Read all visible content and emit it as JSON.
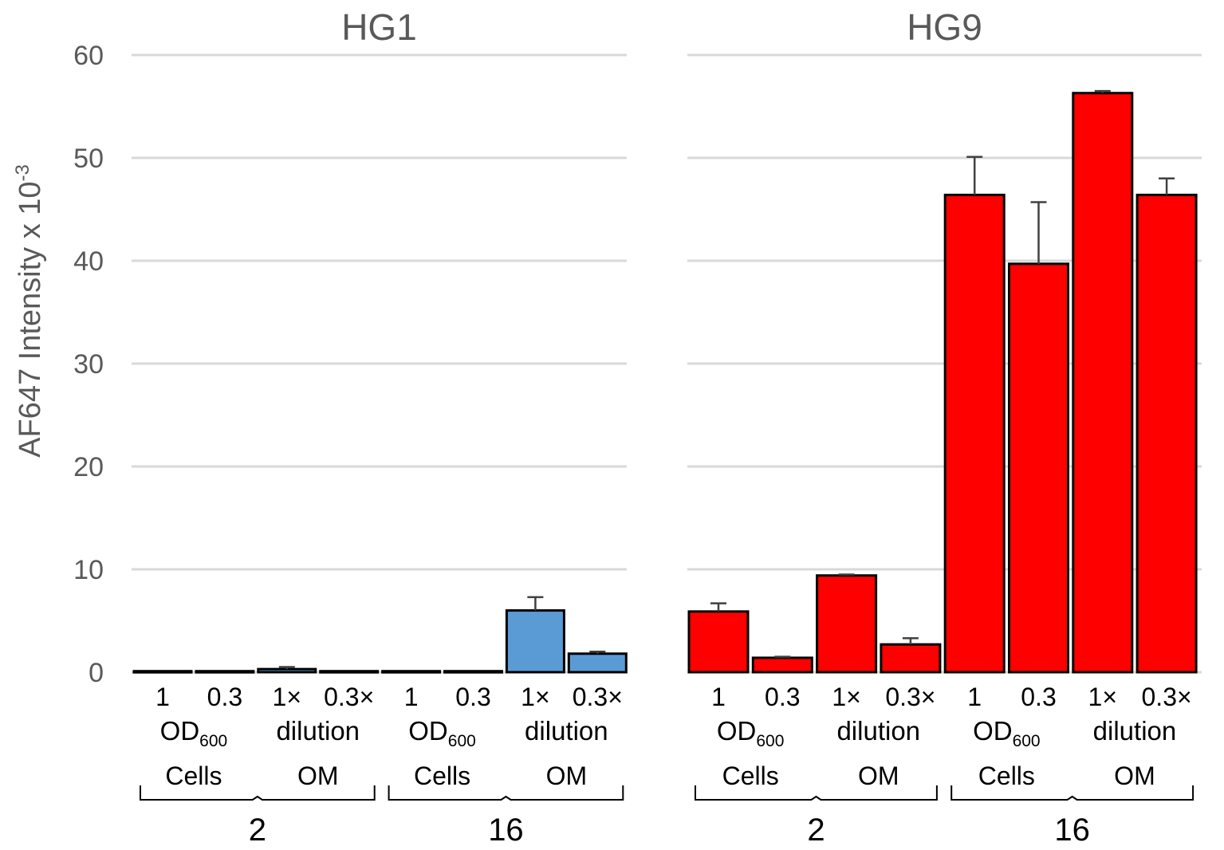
{
  "chart_data": {
    "type": "bar",
    "ylabel_main": "AF647 Intensity x 10",
    "ylabel_exp": "-3",
    "ylim": [
      0,
      60
    ],
    "yticks": [
      "0",
      "10",
      "20",
      "30",
      "40",
      "50",
      "60"
    ],
    "categories": [
      "1",
      "0.3",
      "1×",
      "0.3×",
      "1",
      "0.3",
      "1×",
      "0.3×"
    ],
    "group_labels": [
      "OD",
      "dilution",
      "OD",
      "dilution"
    ],
    "group_subscripts": [
      "600",
      "",
      "600",
      ""
    ],
    "cell_type_labels": [
      "Cells",
      "OM",
      "Cells",
      "OM"
    ],
    "time_labels": [
      "2",
      "16"
    ],
    "panels": [
      {
        "title": "HG1",
        "color": "#5b9bd5",
        "values": [
          0.1,
          0.1,
          0.3,
          0.1,
          0.1,
          0.1,
          6.0,
          1.8
        ],
        "errors": [
          0.0,
          0.0,
          0.2,
          0.0,
          0.0,
          0.0,
          1.3,
          0.2
        ]
      },
      {
        "title": "HG9",
        "color": "#ff0000",
        "values": [
          5.9,
          1.4,
          9.4,
          2.7,
          46.4,
          39.7,
          56.3,
          46.4
        ],
        "errors": [
          0.8,
          0.1,
          0.1,
          0.6,
          3.7,
          6.0,
          0.2,
          1.6
        ]
      }
    ]
  }
}
